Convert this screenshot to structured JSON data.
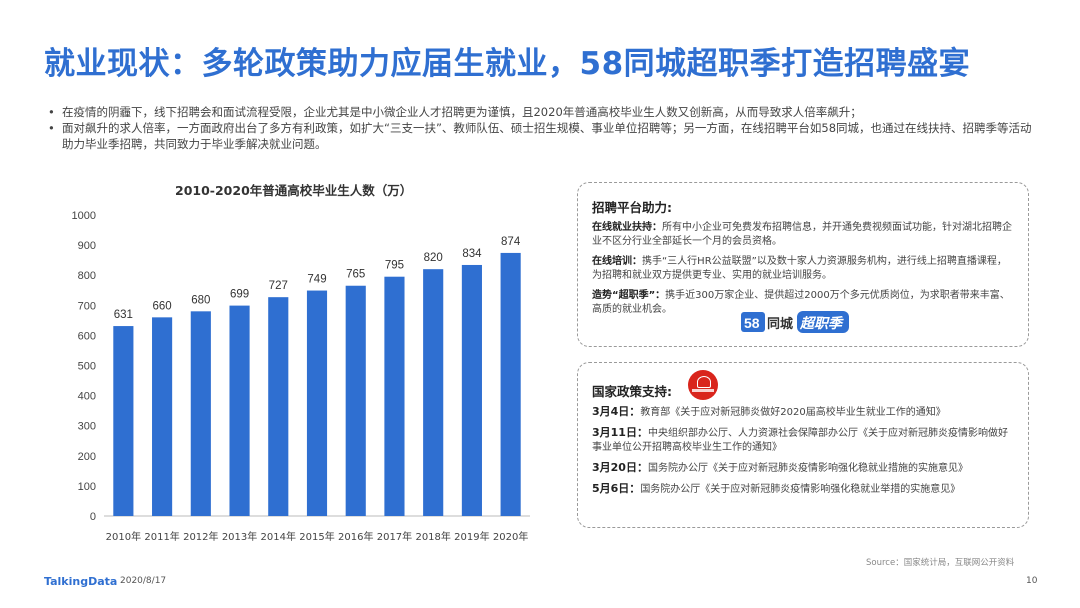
{
  "title": "就业现状：多轮政策助力应届生就业，58同城超职季打造招聘盛宴",
  "bullets": [
    "在疫情的阴霾下，线下招聘会和面试流程受限，企业尤其是中小微企业人才招聘更为谨慎，且2020年普通高校毕业生人数又创新高，从而导致求人倍率飙升；",
    "面对飙升的求人倍率，一方面政府出台了多方有利政策，如扩大“三支一扶”、教师队伍、硕士招生规模、事业单位招聘等；另一方面，在线招聘平台如58同城，也通过在线扶持、招聘季等活动助力毕业季招聘，共同致力于毕业季解决就业问题。"
  ],
  "bullet_symbol": "•",
  "chart_data": {
    "type": "bar",
    "title": "2010-2020年普通高校毕业生人数（万）",
    "categories": [
      "2010年",
      "2011年",
      "2012年",
      "2013年",
      "2014年",
      "2015年",
      "2016年",
      "2017年",
      "2018年",
      "2019年",
      "2020年"
    ],
    "values": [
      631,
      660,
      680,
      699,
      727,
      749,
      765,
      795,
      820,
      834,
      874
    ],
    "ylim": [
      0,
      1000
    ],
    "yticks": [
      "0",
      "100",
      "200",
      "300",
      "400",
      "500",
      "600",
      "700",
      "800",
      "900",
      "1000"
    ],
    "bar_color": "#2f6fd1",
    "grid": false
  },
  "platform": {
    "heading": "招聘平台助力:",
    "items": [
      {
        "label": "在线就业扶持：",
        "text": "所有中小企业可免费发布招聘信息，并开通免费视频面试功能，针对湖北招聘企业不区分行业全部延长一个月的会员资格。"
      },
      {
        "label": "在线培训：",
        "text": "携手“三人行HR公益联盟”以及数十家人力资源服务机构，进行线上招聘直播课程，为招聘和就业双方提供更专业、实用的就业培训服务。"
      },
      {
        "label": "造势“超职季”：",
        "text": "携手近300万家企业、提供超过2000万个多元优质岗位，为求职者带来丰富、高质的就业机会。"
      }
    ],
    "logo_text": "58同城 超职季"
  },
  "policy": {
    "heading": "国家政策支持:",
    "items": [
      {
        "date": "3月4日：",
        "text": "教育部《关于应对新冠肺炎做好2020届高校毕业生就业工作的通知》"
      },
      {
        "date": "3月11日：",
        "text": "中央组织部办公厅、人力资源社会保障部办公厅《关于应对新冠肺炎疫情影响做好事业单位公开招聘高校毕业生工作的通知》"
      },
      {
        "date": "3月20日：",
        "text": "国务院办公厅《关于应对新冠肺炎疫情影响强化稳就业措施的实施意见》"
      },
      {
        "date": "5月6日：",
        "text": "国务院办公厅《关于应对新冠肺炎疫情影响强化稳就业举措的实施意见》"
      }
    ]
  },
  "footer": {
    "logo": "TalkingData",
    "date": "2020/8/17",
    "source": "Source：国家统计局，互联网公开资料",
    "page": "10"
  }
}
